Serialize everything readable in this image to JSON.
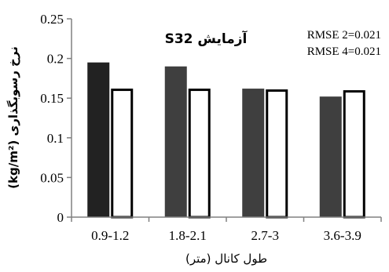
{
  "chart_data": {
    "type": "bar",
    "title": "آزمایش S32",
    "xlabel": "طول کانال (متر)",
    "ylabel": "نرخ رسوبگذاری (kg/m²)",
    "categories": [
      "0.9-1.2",
      "1.8-2.1",
      "2.7-3",
      "3.6-3.9"
    ],
    "series": [
      {
        "values": [
          0.195,
          0.19,
          0.162,
          0.152
        ],
        "color": "#333333",
        "style": "filled"
      },
      {
        "values": [
          0.162,
          0.162,
          0.161,
          0.16
        ],
        "color": "#ffffff",
        "stroke": "#000000",
        "style": "outlined"
      }
    ],
    "ylim": [
      0,
      0.25
    ],
    "yticks": [
      "0",
      "0.05",
      "0.1",
      "0.15",
      "0.2",
      "0.25"
    ],
    "annotations": [
      "RMSE 2=0.021",
      "RMSE 4=0.021"
    ],
    "grid": false,
    "legend": "none"
  }
}
